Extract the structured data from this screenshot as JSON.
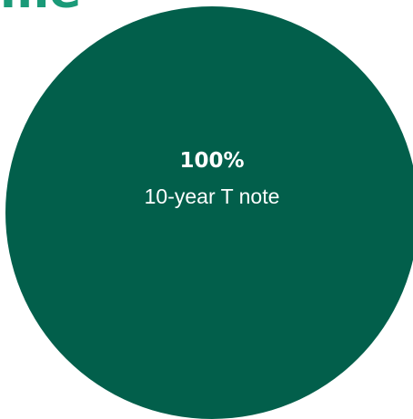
{
  "clipped_title": "me",
  "chart_data": {
    "type": "pie",
    "slices": [
      {
        "label": "10-year T note",
        "value": 100,
        "value_label": "100%",
        "color": "#025f4b"
      }
    ],
    "accent_color": "#1a9a78"
  }
}
